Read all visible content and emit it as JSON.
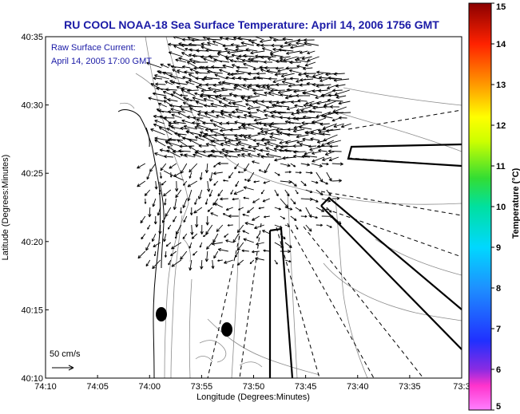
{
  "chart_data": {
    "type": "scatter",
    "title": "RU COOL  NOAA-18  Sea Surface Temperature:  April 14, 2006 1756 GMT",
    "xlabel": "Longitude (Degrees:Minutes)",
    "ylabel": "Latitude (Degrees:Minutes)",
    "annotation_lines": [
      "Raw Surface Current:",
      "April 14, 2005 17:00 GMT"
    ],
    "scale_label": "50 cm/s",
    "scale_speed_cms": 50,
    "x_ticks": [
      "74:10",
      "74:05",
      "74:00",
      "73:55",
      "73:50",
      "73:45",
      "73:40",
      "73:35",
      "73:3"
    ],
    "y_ticks": [
      "40:10",
      "40:15",
      "40:20",
      "40:25",
      "40:30",
      "40:35"
    ],
    "xlim_minutes_west": [
      74.1667,
      73.5
    ],
    "ylim_minutes_north": [
      40.1667,
      40.5833
    ],
    "colorbar": {
      "label": "Temperature (°C)",
      "ticks": [
        "5",
        "6",
        "7",
        "8",
        "9",
        "10",
        "11",
        "12",
        "13",
        "14",
        "15"
      ],
      "range": [
        5,
        15
      ]
    },
    "current_region": {
      "lon": [
        73.6333,
        73.9667
      ],
      "lat": [
        40.2333,
        40.5667
      ],
      "dominant_direction": "westward / south-westward",
      "typical_speed_cms": 20
    },
    "site_markers": [
      {
        "lon": 73.9833,
        "lat": 40.2333
      },
      {
        "lon": 73.8833,
        "lat": 40.2167
      }
    ]
  }
}
